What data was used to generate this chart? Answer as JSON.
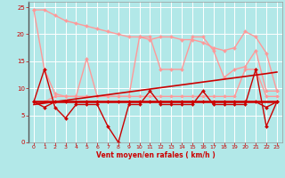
{
  "x": [
    0,
    1,
    2,
    3,
    4,
    5,
    6,
    7,
    8,
    9,
    10,
    11,
    12,
    13,
    14,
    15,
    16,
    17,
    18,
    19,
    20,
    21,
    22,
    23
  ],
  "bg": "#b2e8e8",
  "grid_color": "#ffffff",
  "xlabel": "Vent moyen/en rafales ( km/h )",
  "xlabel_color": "#cc0000",
  "tick_color": "#cc0000",
  "series": [
    {
      "color": "#ff9999",
      "lw": 1.0,
      "marker": "D",
      "ms": 2.0,
      "values": [
        24.5,
        24.5,
        23.5,
        22.5,
        22.0,
        21.5,
        21.0,
        20.5,
        20.0,
        19.5,
        19.5,
        19.0,
        19.5,
        19.5,
        19.0,
        19.0,
        18.5,
        17.5,
        17.0,
        17.5,
        20.5,
        19.5,
        16.5,
        9.5
      ]
    },
    {
      "color": "#ff9999",
      "lw": 1.0,
      "marker": "D",
      "ms": 2.0,
      "values": [
        24.5,
        13.5,
        9.0,
        8.5,
        8.5,
        8.5,
        8.5,
        8.5,
        8.5,
        8.5,
        19.5,
        19.5,
        13.5,
        13.5,
        13.5,
        19.5,
        19.5,
        17.0,
        12.0,
        13.5,
        14.0,
        17.0,
        9.5,
        9.5
      ]
    },
    {
      "color": "#ff9999",
      "lw": 1.0,
      "marker": "D",
      "ms": 2.0,
      "values": [
        7.5,
        7.5,
        8.5,
        8.5,
        8.5,
        15.5,
        8.5,
        8.5,
        8.5,
        8.5,
        8.5,
        8.5,
        8.5,
        8.5,
        8.5,
        8.5,
        8.5,
        8.5,
        8.5,
        8.5,
        13.5,
        13.5,
        8.5,
        8.5
      ]
    },
    {
      "color": "#cc0000",
      "lw": 1.2,
      "marker": null,
      "ms": 0,
      "values": [
        7.0,
        7.26,
        7.52,
        7.78,
        8.04,
        8.3,
        8.56,
        8.82,
        9.08,
        9.34,
        9.6,
        9.86,
        10.12,
        10.38,
        10.64,
        10.9,
        11.16,
        11.42,
        11.68,
        11.94,
        12.2,
        12.46,
        12.72,
        13.0
      ]
    },
    {
      "color": "#cc0000",
      "lw": 1.8,
      "marker": null,
      "ms": 0,
      "values": [
        7.5,
        7.5,
        7.5,
        7.5,
        7.5,
        7.5,
        7.5,
        7.5,
        7.5,
        7.5,
        7.5,
        7.5,
        7.5,
        7.5,
        7.5,
        7.5,
        7.5,
        7.5,
        7.5,
        7.5,
        7.5,
        7.5,
        7.5,
        7.5
      ]
    },
    {
      "color": "#cc0000",
      "lw": 1.0,
      "marker": "D",
      "ms": 2.0,
      "values": [
        7.5,
        13.5,
        6.5,
        4.5,
        7.0,
        7.0,
        7.0,
        3.0,
        0.0,
        7.0,
        7.0,
        9.5,
        7.0,
        7.0,
        7.0,
        7.0,
        9.5,
        7.0,
        7.0,
        7.0,
        7.0,
        13.5,
        3.0,
        7.5
      ]
    },
    {
      "color": "#cc0000",
      "lw": 1.0,
      "marker": "D",
      "ms": 2.0,
      "values": [
        7.5,
        6.5,
        7.5,
        7.5,
        7.5,
        7.5,
        7.5,
        7.5,
        7.5,
        7.5,
        7.5,
        7.5,
        7.5,
        7.5,
        7.5,
        7.5,
        7.5,
        7.5,
        7.5,
        7.5,
        7.5,
        7.5,
        6.5,
        7.5
      ]
    }
  ],
  "ylim": [
    0,
    26
  ],
  "xlim": [
    -0.5,
    23.5
  ],
  "yticks": [
    0,
    5,
    10,
    15,
    20,
    25
  ],
  "xticks": [
    0,
    1,
    2,
    3,
    4,
    5,
    6,
    7,
    8,
    9,
    10,
    11,
    12,
    13,
    14,
    15,
    16,
    17,
    18,
    19,
    20,
    21,
    22,
    23
  ],
  "figsize": [
    3.2,
    2.0
  ],
  "dpi": 100
}
